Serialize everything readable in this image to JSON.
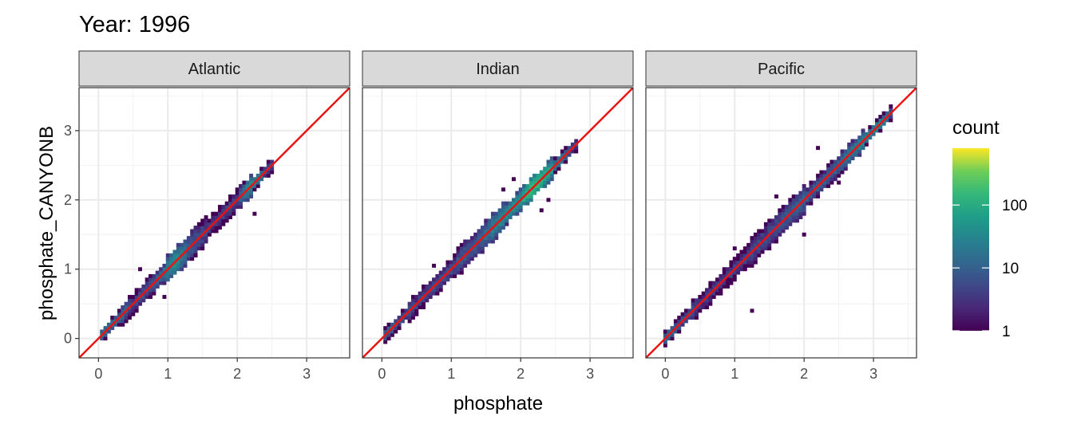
{
  "title": "Year: 1996",
  "chart_data": {
    "type": "heatmap",
    "xlabel": "phosphate",
    "ylabel": "phosphate_CANYONB",
    "xlim": [
      -0.28,
      3.62
    ],
    "ylim": [
      -0.28,
      3.62
    ],
    "x_ticks": [
      "0",
      "1",
      "2",
      "3"
    ],
    "y_ticks": [
      "0",
      "1",
      "2",
      "3"
    ],
    "grid": true,
    "reference_line": {
      "slope": 1,
      "intercept": 0,
      "color": "#ee1111"
    },
    "legend": {
      "title": "count",
      "scale": "log10",
      "range": [
        1,
        800
      ],
      "ticks": [
        "1",
        "10",
        "100"
      ],
      "colormap": "viridis",
      "placement": "right"
    },
    "facets": [
      {
        "name": "Atlantic",
        "x_range": [
          0.05,
          2.5
        ],
        "count_profile": [
          [
            0.1,
            30
          ],
          [
            0.5,
            5
          ],
          [
            0.9,
            12
          ],
          [
            1.1,
            40
          ],
          [
            1.3,
            10
          ],
          [
            1.6,
            4
          ],
          [
            2.0,
            6
          ],
          [
            2.25,
            50
          ],
          [
            2.4,
            10
          ]
        ],
        "outliers": [
          [
            0.6,
            1.0
          ],
          [
            0.95,
            0.6
          ],
          [
            2.25,
            1.8
          ],
          [
            0.45,
            0.3
          ],
          [
            1.4,
            1.2
          ]
        ]
      },
      {
        "name": "Indian",
        "x_range": [
          0.05,
          2.8
        ],
        "count_profile": [
          [
            0.1,
            20
          ],
          [
            0.5,
            5
          ],
          [
            1.0,
            8
          ],
          [
            1.4,
            10
          ],
          [
            1.7,
            30
          ],
          [
            2.0,
            60
          ],
          [
            2.15,
            200
          ],
          [
            2.3,
            150
          ],
          [
            2.5,
            40
          ],
          [
            2.75,
            8
          ]
        ],
        "outliers": [
          [
            1.75,
            2.15
          ],
          [
            2.4,
            2.0
          ],
          [
            0.75,
            1.05
          ],
          [
            2.3,
            1.85
          ],
          [
            1.9,
            2.3
          ]
        ]
      },
      {
        "name": "Pacific",
        "x_range": [
          0.0,
          3.25
        ],
        "count_profile": [
          [
            0.05,
            20
          ],
          [
            0.5,
            4
          ],
          [
            1.0,
            5
          ],
          [
            1.5,
            6
          ],
          [
            2.0,
            10
          ],
          [
            2.5,
            12
          ],
          [
            2.8,
            30
          ],
          [
            3.1,
            60
          ],
          [
            3.25,
            10
          ]
        ],
        "outliers": [
          [
            1.25,
            0.4
          ],
          [
            1.6,
            2.05
          ],
          [
            2.2,
            2.75
          ],
          [
            2.0,
            1.5
          ],
          [
            0.9,
            0.85
          ],
          [
            2.5,
            2.25
          ],
          [
            1.0,
            1.3
          ]
        ]
      }
    ]
  }
}
